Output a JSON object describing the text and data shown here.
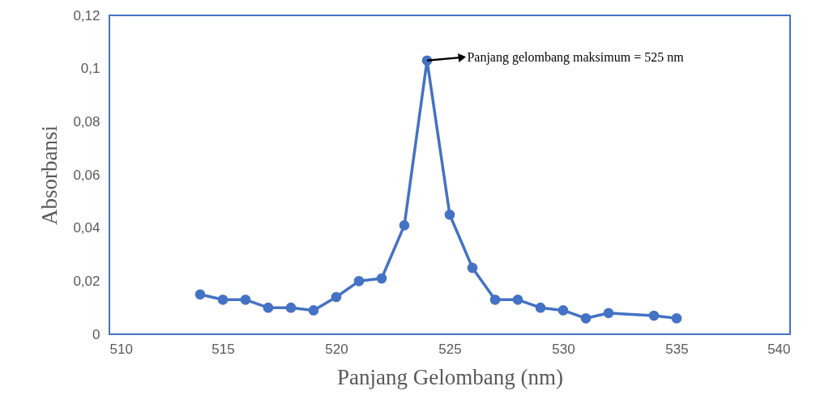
{
  "chart_data": {
    "type": "line",
    "xlabel": "Panjang Gelombang (nm)",
    "ylabel": "Absorbansi",
    "x": [
      514,
      515,
      516,
      517,
      518,
      519,
      520,
      521,
      522,
      523,
      524,
      525,
      526,
      527,
      528,
      529,
      530,
      531,
      532,
      534,
      535
    ],
    "series": [
      {
        "color": "#4472c4",
        "values": [
          0.015,
          0.013,
          0.013,
          0.01,
          0.01,
          0.009,
          0.014,
          0.02,
          0.021,
          0.041,
          0.103,
          0.045,
          0.025,
          0.013,
          0.013,
          0.01,
          0.009,
          0.006,
          0.008,
          0.007,
          0.006
        ]
      }
    ],
    "xlim": [
      510,
      540
    ],
    "xticks": [
      510,
      515,
      520,
      525,
      530,
      535,
      540
    ],
    "ylim": [
      0,
      0.12
    ],
    "yticks": [
      0,
      {
        "value": 0.02,
        "label": "0,02"
      },
      {
        "value": 0.04,
        "label": "0,04"
      },
      {
        "value": 0.06,
        "label": "0,06"
      },
      {
        "value": 0.08,
        "label": "0,08"
      },
      {
        "value": 0.1,
        "label": "0,1"
      },
      {
        "value": 0.12,
        "label": "0,12"
      }
    ],
    "marker": "circle",
    "line_style": "solid",
    "grid": false,
    "annotations": [
      {
        "text": "Panjang gelombang maksimum = 525 nm",
        "x": 524,
        "y": 0.103
      }
    ]
  }
}
